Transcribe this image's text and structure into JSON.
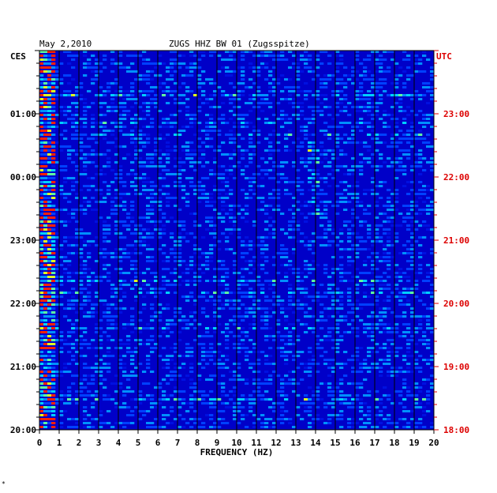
{
  "chart_data": {
    "type": "heatmap",
    "date": "May 2,2010",
    "title": "ZUGS HHZ BW 01 (Zugsspitze)",
    "left_axis_label": "CES",
    "right_axis_label": "UTC",
    "xlabel": "FREQUENCY (HZ)",
    "xlim": [
      0,
      20
    ],
    "x_ticks": [
      "0",
      "1",
      "2",
      "3",
      "4",
      "5",
      "6",
      "7",
      "8",
      "9",
      "10",
      "11",
      "12",
      "13",
      "14",
      "15",
      "16",
      "17",
      "18",
      "19",
      "20"
    ],
    "left_time_ticks": [
      "01:00",
      "00:00",
      "23:00",
      "22:00",
      "21:00",
      "20:00"
    ],
    "right_time_ticks": [
      "23:00",
      "22:00",
      "21:00",
      "20:00",
      "19:00",
      "18:00"
    ],
    "colors": {
      "background": "#0000c8",
      "left_ticks": "#000000",
      "right_ticks": "#dd0000",
      "right_axis_label": "#dd0000",
      "grid": "#000000"
    }
  },
  "footer_mark": "*"
}
